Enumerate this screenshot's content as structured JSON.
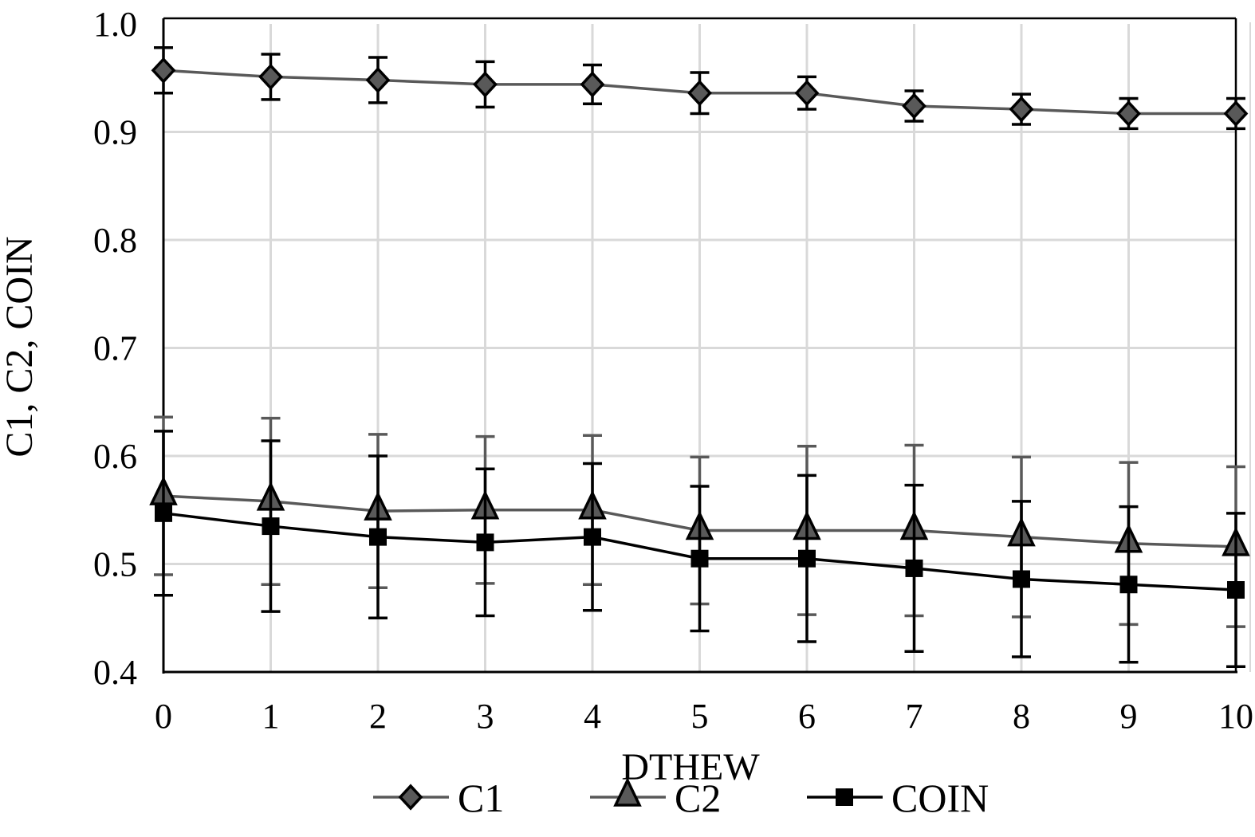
{
  "chart_data": {
    "type": "line",
    "xlabel": "DTHEW",
    "ylabel": "C1, C2, COIN",
    "xlim": [
      0,
      10
    ],
    "ylim": [
      0.4,
      1.0
    ],
    "x": [
      0,
      1,
      2,
      3,
      4,
      5,
      6,
      7,
      8,
      9,
      10
    ],
    "xticks": [
      "0",
      "1",
      "2",
      "3",
      "4",
      "5",
      "6",
      "7",
      "8",
      "9",
      "10"
    ],
    "yticks": [
      "0.4",
      "0.5",
      "0.6",
      "0.7",
      "0.8",
      "0.9",
      "1.0"
    ],
    "grid": true,
    "legend_position": "bottom",
    "series": [
      {
        "name": "C1",
        "marker": "diamond",
        "line_color": "#595959",
        "marker_color": "#595959",
        "error_color": "#000000",
        "values": [
          0.957,
          0.951,
          0.948,
          0.944,
          0.944,
          0.936,
          0.936,
          0.924,
          0.921,
          0.917,
          0.917
        ],
        "errors": [
          0.021,
          0.021,
          0.021,
          0.021,
          0.018,
          0.019,
          0.015,
          0.014,
          0.014,
          0.014,
          0.014
        ]
      },
      {
        "name": "C2",
        "marker": "triangle",
        "line_color": "#595959",
        "marker_color": "#595959",
        "error_color": "#595959",
        "values": [
          0.563,
          0.558,
          0.549,
          0.55,
          0.55,
          0.531,
          0.531,
          0.531,
          0.525,
          0.519,
          0.516
        ],
        "errors": [
          0.073,
          0.077,
          0.071,
          0.068,
          0.069,
          0.068,
          0.078,
          0.079,
          0.074,
          0.075,
          0.074
        ]
      },
      {
        "name": "COIN",
        "marker": "square",
        "line_color": "#000000",
        "marker_color": "#000000",
        "error_color": "#000000",
        "values": [
          0.547,
          0.535,
          0.525,
          0.52,
          0.525,
          0.505,
          0.505,
          0.496,
          0.486,
          0.481,
          0.476
        ],
        "errors": [
          0.076,
          0.079,
          0.075,
          0.068,
          0.068,
          0.067,
          0.077,
          0.077,
          0.072,
          0.072,
          0.071
        ]
      }
    ]
  }
}
